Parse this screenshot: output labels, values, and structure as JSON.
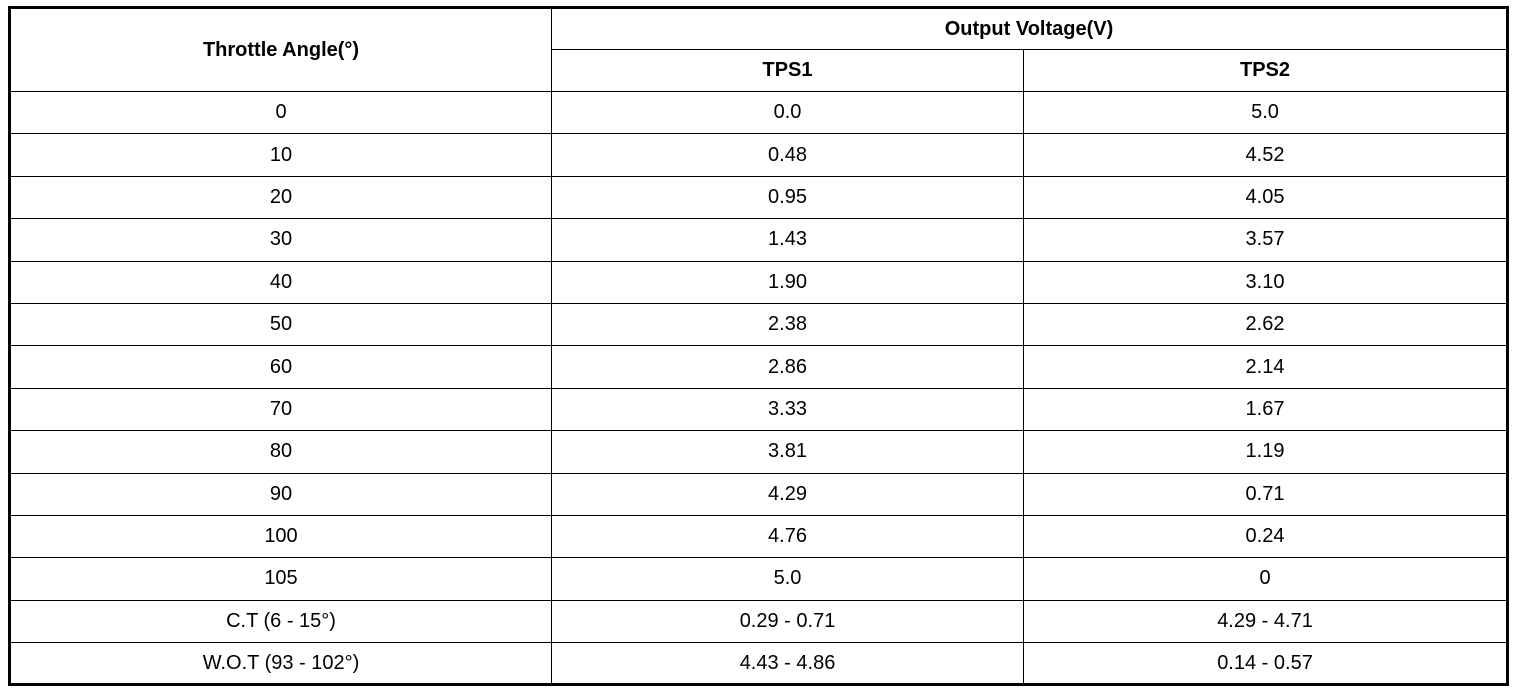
{
  "table": {
    "header": {
      "angle": "Throttle Angle(°)",
      "group": "Output Voltage(V)",
      "sub": [
        "TPS1",
        "TPS2"
      ]
    },
    "rows": [
      [
        "0",
        "0.0",
        "5.0"
      ],
      [
        "10",
        "0.48",
        "4.52"
      ],
      [
        "20",
        "0.95",
        "4.05"
      ],
      [
        "30",
        "1.43",
        "3.57"
      ],
      [
        "40",
        "1.90",
        "3.10"
      ],
      [
        "50",
        "2.38",
        "2.62"
      ],
      [
        "60",
        "2.86",
        "2.14"
      ],
      [
        "70",
        "3.33",
        "1.67"
      ],
      [
        "80",
        "3.81",
        "1.19"
      ],
      [
        "90",
        "4.29",
        "0.71"
      ],
      [
        "100",
        "4.76",
        "0.24"
      ],
      [
        "105",
        "5.0",
        "0"
      ],
      [
        "C.T (6 - 15°)",
        "0.29 - 0.71",
        "4.29 - 4.71"
      ],
      [
        "W.O.T (93 - 102°)",
        "4.43 - 4.86",
        "0.14 - 0.57"
      ]
    ]
  }
}
